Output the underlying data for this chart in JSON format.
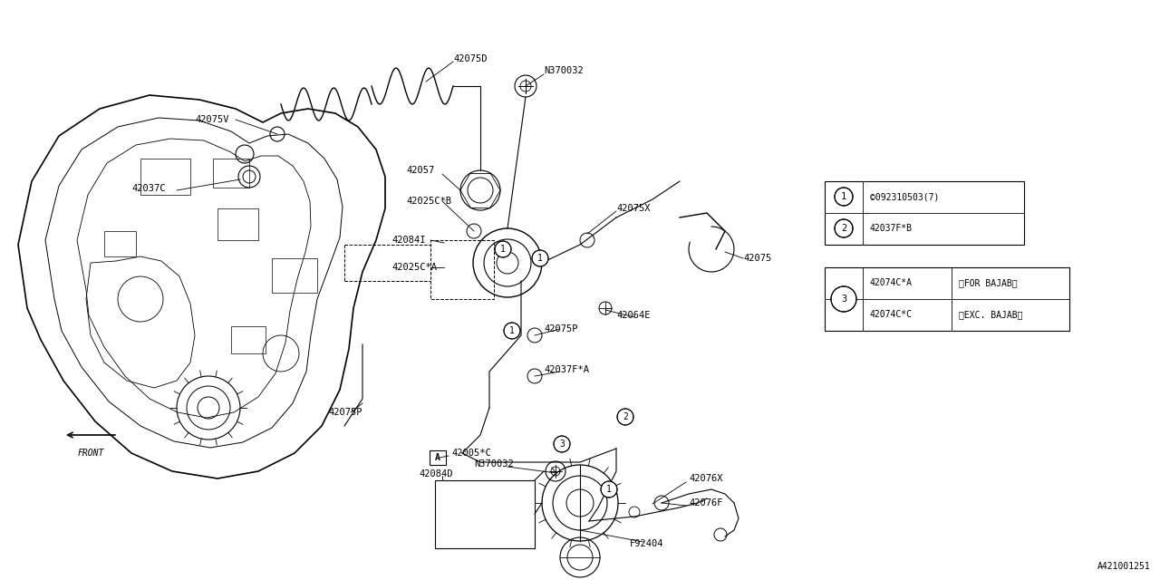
{
  "bg_color": "#ffffff",
  "line_color": "#000000",
  "diagram_id": "A421001251",
  "parts_table1": [
    {
      "num": "1",
      "code": "©092310503(7)"
    },
    {
      "num": "2",
      "code": "42037F*B"
    }
  ],
  "parts_table2": [
    {
      "num": "3",
      "code": "42074C*A",
      "note": "〈FOR BAJAB〉"
    },
    {
      "num": "3",
      "code": "42074C*C",
      "note": "〈EXC. BAJAB〉"
    }
  ],
  "font_size": 7.5,
  "lw_main": 1.0,
  "lw_thin": 0.6
}
